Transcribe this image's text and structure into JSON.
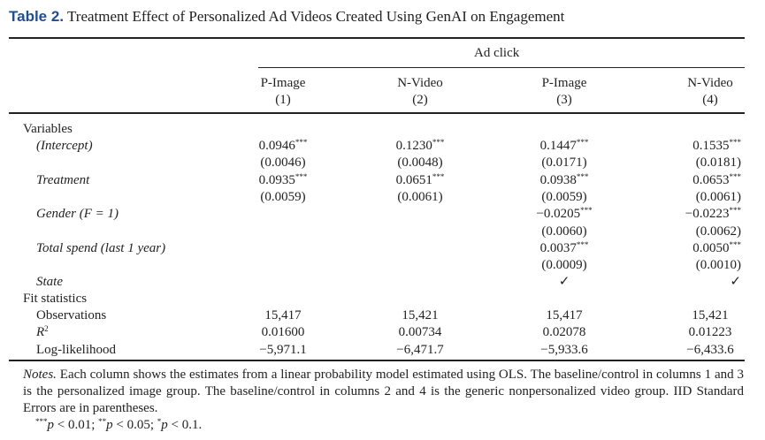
{
  "title": {
    "label": "Table 2.",
    "text": "Treatment Effect of Personalized Ad Videos Created Using GenAI on Engagement"
  },
  "dependent_variable": "Ad click",
  "columns": [
    {
      "name": "P-Image",
      "num": "(1)"
    },
    {
      "name": "N-Video",
      "num": "(2)"
    },
    {
      "name": "P-Image",
      "num": "(3)"
    },
    {
      "name": "N-Video",
      "num": "(4)"
    }
  ],
  "sections": {
    "variables": "Variables",
    "fit": "Fit statistics"
  },
  "rows": [
    {
      "label": "(Intercept)",
      "cells": [
        "0.0946",
        "0.1230",
        "0.1447",
        "0.1535"
      ],
      "stars": [
        "***",
        "***",
        "***",
        "***"
      ]
    },
    {
      "label": "",
      "cells": [
        "(0.0046)",
        "(0.0048)",
        "(0.0171)",
        "(0.0181)"
      ]
    },
    {
      "label": "Treatment",
      "cells": [
        "0.0935",
        "0.0651",
        "0.0938",
        "0.0653"
      ],
      "stars": [
        "***",
        "***",
        "***",
        "***"
      ]
    },
    {
      "label": "",
      "cells": [
        "(0.0059)",
        "(0.0061)",
        "(0.0059)",
        "(0.0061)"
      ]
    },
    {
      "label": "Gender (F = 1)",
      "cells": [
        "",
        "",
        "−0.0205",
        "−0.0223"
      ],
      "stars": [
        "",
        "",
        "***",
        "***"
      ]
    },
    {
      "label": "",
      "cells": [
        "",
        "",
        "(0.0060)",
        "(0.0062)"
      ]
    },
    {
      "label": "Total spend (last 1 year)",
      "cells": [
        "",
        "",
        "0.0037",
        "0.0050"
      ],
      "stars": [
        "",
        "",
        "***",
        "***"
      ]
    },
    {
      "label": "",
      "cells": [
        "",
        "",
        "(0.0009)",
        "(0.0010)"
      ]
    },
    {
      "label": "State",
      "cells": [
        "",
        "",
        "✓",
        "✓"
      ]
    }
  ],
  "fit_rows": [
    {
      "label": "Observations",
      "cells": [
        "15,417",
        "15,421",
        "15,417",
        "15,421"
      ]
    },
    {
      "label": "R",
      "sup": "2",
      "cells": [
        "0.01600",
        "0.00734",
        "0.02078",
        "0.01223"
      ]
    },
    {
      "label": "Log-likelihood",
      "cells": [
        "−5,971.1",
        "−6,471.7",
        "−5,933.6",
        "−6,433.6"
      ]
    }
  ],
  "notes": {
    "label": "Notes.",
    "text": "Each column shows the estimates from a linear probability model estimated using OLS. The baseline/control in columns 1 and 3 is the personalized image group. The baseline/control in columns 2 and 4 is the generic nonpersonalized video group. IID Standard Errors are in parentheses.",
    "sig": [
      {
        "stars": "***",
        "p": "p",
        "txt": " < 0.01; "
      },
      {
        "stars": "**",
        "p": "p",
        "txt": " < 0.05; "
      },
      {
        "stars": "*",
        "p": "p",
        "txt": " < 0.1."
      }
    ]
  }
}
